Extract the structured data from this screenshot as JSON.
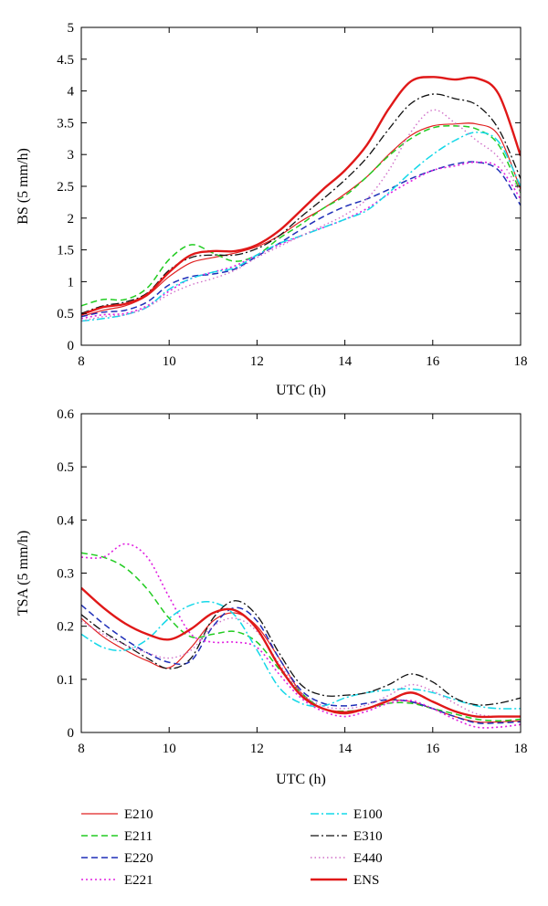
{
  "styles": {
    "E210": {
      "color": "#e02020",
      "dash": "",
      "width": 1.2
    },
    "E211": {
      "color": "#22cc22",
      "dash": "7,4",
      "width": 1.5
    },
    "E220": {
      "color": "#1f2fb8",
      "dash": "7,4",
      "width": 1.5
    },
    "E221": {
      "color": "#e020e0",
      "dash": "2,3",
      "width": 1.6
    },
    "E100": {
      "color": "#14d8e8",
      "dash": "9,3,2,3",
      "width": 1.5
    },
    "E310": {
      "color": "#111111",
      "dash": "9,3,2,3",
      "width": 1.3
    },
    "E440": {
      "color": "#d070c8",
      "dash": "1.5,3",
      "width": 1.4
    },
    "ENS": {
      "color": "#e01818",
      "dash": "",
      "width": 2.4
    }
  },
  "legend": {
    "left": [
      "E210",
      "E211",
      "E220",
      "E221"
    ],
    "right": [
      "E100",
      "E310",
      "E440",
      "ENS"
    ]
  },
  "chart_data": [
    {
      "type": "line",
      "xlabel": "UTC (h)",
      "ylabel": "BS (5 mm/h)",
      "xlim": [
        8,
        18
      ],
      "ylim": [
        0,
        5
      ],
      "xticks": [
        8,
        10,
        12,
        14,
        16,
        18
      ],
      "yticks": [
        0,
        0.5,
        1,
        1.5,
        2,
        2.5,
        3,
        3.5,
        4,
        4.5,
        5
      ],
      "ytick_labels": [
        "0",
        "0.5",
        "1",
        "1.5",
        "2",
        "2.5",
        "3",
        "3.5",
        "4",
        "4.5",
        "5"
      ],
      "x": [
        8,
        8.5,
        9,
        9.5,
        10,
        10.5,
        11,
        11.5,
        12,
        12.5,
        13,
        13.5,
        14,
        14.5,
        15,
        15.5,
        16,
        16.5,
        17,
        17.5,
        18
      ],
      "series": [
        {
          "name": "E210",
          "values": [
            0.45,
            0.55,
            0.62,
            0.78,
            1.08,
            1.3,
            1.38,
            1.45,
            1.55,
            1.72,
            1.95,
            2.15,
            2.38,
            2.65,
            3.0,
            3.3,
            3.45,
            3.48,
            3.48,
            3.3,
            2.45
          ]
        },
        {
          "name": "E211",
          "values": [
            0.62,
            0.72,
            0.72,
            0.9,
            1.35,
            1.58,
            1.45,
            1.32,
            1.42,
            1.68,
            1.9,
            2.15,
            2.35,
            2.65,
            2.98,
            3.25,
            3.42,
            3.45,
            3.4,
            3.15,
            2.4
          ]
        },
        {
          "name": "E220",
          "values": [
            0.45,
            0.52,
            0.55,
            0.68,
            0.95,
            1.08,
            1.12,
            1.2,
            1.4,
            1.6,
            1.82,
            2.02,
            2.18,
            2.3,
            2.45,
            2.62,
            2.75,
            2.85,
            2.88,
            2.75,
            2.2
          ]
        },
        {
          "name": "E221",
          "values": [
            0.42,
            0.48,
            0.5,
            0.62,
            0.85,
            1.05,
            1.15,
            1.25,
            1.42,
            1.58,
            1.72,
            1.85,
            1.98,
            2.15,
            2.38,
            2.58,
            2.75,
            2.82,
            2.88,
            2.8,
            2.3
          ]
        },
        {
          "name": "E100",
          "values": [
            0.38,
            0.42,
            0.48,
            0.6,
            0.88,
            1.05,
            1.15,
            1.22,
            1.42,
            1.6,
            1.72,
            1.85,
            1.98,
            2.12,
            2.4,
            2.72,
            3.0,
            3.22,
            3.35,
            3.2,
            2.5
          ]
        },
        {
          "name": "E310",
          "values": [
            0.5,
            0.62,
            0.68,
            0.82,
            1.18,
            1.38,
            1.42,
            1.42,
            1.52,
            1.72,
            2.02,
            2.3,
            2.6,
            2.95,
            3.4,
            3.8,
            3.95,
            3.88,
            3.78,
            3.4,
            2.62
          ]
        },
        {
          "name": "E440",
          "values": [
            0.38,
            0.45,
            0.48,
            0.6,
            0.8,
            0.95,
            1.05,
            1.18,
            1.38,
            1.55,
            1.72,
            1.88,
            2.05,
            2.3,
            2.75,
            3.35,
            3.7,
            3.5,
            3.22,
            2.95,
            2.4
          ]
        },
        {
          "name": "ENS",
          "values": [
            0.48,
            0.6,
            0.65,
            0.8,
            1.15,
            1.42,
            1.48,
            1.48,
            1.58,
            1.8,
            2.12,
            2.45,
            2.75,
            3.15,
            3.72,
            4.15,
            4.22,
            4.18,
            4.2,
            3.95,
            2.98
          ]
        }
      ]
    },
    {
      "type": "line",
      "xlabel": "UTC (h)",
      "ylabel": "TSA (5 mm/h)",
      "xlim": [
        8,
        18
      ],
      "ylim": [
        0,
        0.6
      ],
      "xticks": [
        8,
        10,
        12,
        14,
        16,
        18
      ],
      "yticks": [
        0,
        0.1,
        0.2,
        0.3,
        0.4,
        0.5,
        0.6
      ],
      "ytick_labels": [
        "0",
        "0.1",
        "0.2",
        "0.3",
        "0.4",
        "0.5",
        "0.6"
      ],
      "x": [
        8,
        8.5,
        9,
        9.5,
        10,
        10.5,
        11,
        11.5,
        12,
        12.5,
        13,
        13.5,
        14,
        14.5,
        15,
        15.5,
        16,
        16.5,
        17,
        17.5,
        18
      ],
      "series": [
        {
          "name": "E210",
          "values": [
            0.215,
            0.18,
            0.155,
            0.135,
            0.122,
            0.16,
            0.21,
            0.225,
            0.2,
            0.14,
            0.075,
            0.045,
            0.035,
            0.045,
            0.06,
            0.058,
            0.045,
            0.03,
            0.02,
            0.02,
            0.022
          ]
        },
        {
          "name": "E211",
          "values": [
            0.338,
            0.33,
            0.31,
            0.27,
            0.215,
            0.18,
            0.185,
            0.19,
            0.17,
            0.12,
            0.075,
            0.045,
            0.04,
            0.045,
            0.055,
            0.055,
            0.045,
            0.035,
            0.025,
            0.022,
            0.025
          ]
        },
        {
          "name": "E220",
          "values": [
            0.24,
            0.205,
            0.175,
            0.15,
            0.132,
            0.135,
            0.2,
            0.235,
            0.21,
            0.14,
            0.08,
            0.055,
            0.05,
            0.055,
            0.062,
            0.058,
            0.045,
            0.03,
            0.018,
            0.018,
            0.02
          ]
        },
        {
          "name": "E221",
          "values": [
            0.33,
            0.33,
            0.355,
            0.33,
            0.255,
            0.185,
            0.17,
            0.17,
            0.16,
            0.11,
            0.065,
            0.04,
            0.03,
            0.04,
            0.055,
            0.06,
            0.045,
            0.025,
            0.01,
            0.01,
            0.015
          ]
        },
        {
          "name": "E100",
          "values": [
            0.185,
            0.16,
            0.155,
            0.175,
            0.215,
            0.24,
            0.245,
            0.22,
            0.155,
            0.085,
            0.055,
            0.05,
            0.065,
            0.075,
            0.08,
            0.082,
            0.075,
            0.062,
            0.05,
            0.045,
            0.045
          ]
        },
        {
          "name": "E310",
          "values": [
            0.222,
            0.19,
            0.165,
            0.14,
            0.12,
            0.14,
            0.215,
            0.248,
            0.22,
            0.15,
            0.09,
            0.07,
            0.07,
            0.075,
            0.09,
            0.11,
            0.095,
            0.065,
            0.052,
            0.055,
            0.065
          ]
        },
        {
          "name": "E440",
          "values": [
            0.21,
            0.185,
            0.165,
            0.15,
            0.14,
            0.155,
            0.2,
            0.215,
            0.19,
            0.13,
            0.075,
            0.05,
            0.045,
            0.052,
            0.07,
            0.09,
            0.078,
            0.055,
            0.035,
            0.03,
            0.03
          ]
        },
        {
          "name": "ENS",
          "values": [
            0.272,
            0.235,
            0.205,
            0.185,
            0.175,
            0.195,
            0.225,
            0.23,
            0.195,
            0.125,
            0.07,
            0.045,
            0.038,
            0.045,
            0.06,
            0.075,
            0.058,
            0.04,
            0.03,
            0.03,
            0.03
          ]
        }
      ]
    }
  ]
}
